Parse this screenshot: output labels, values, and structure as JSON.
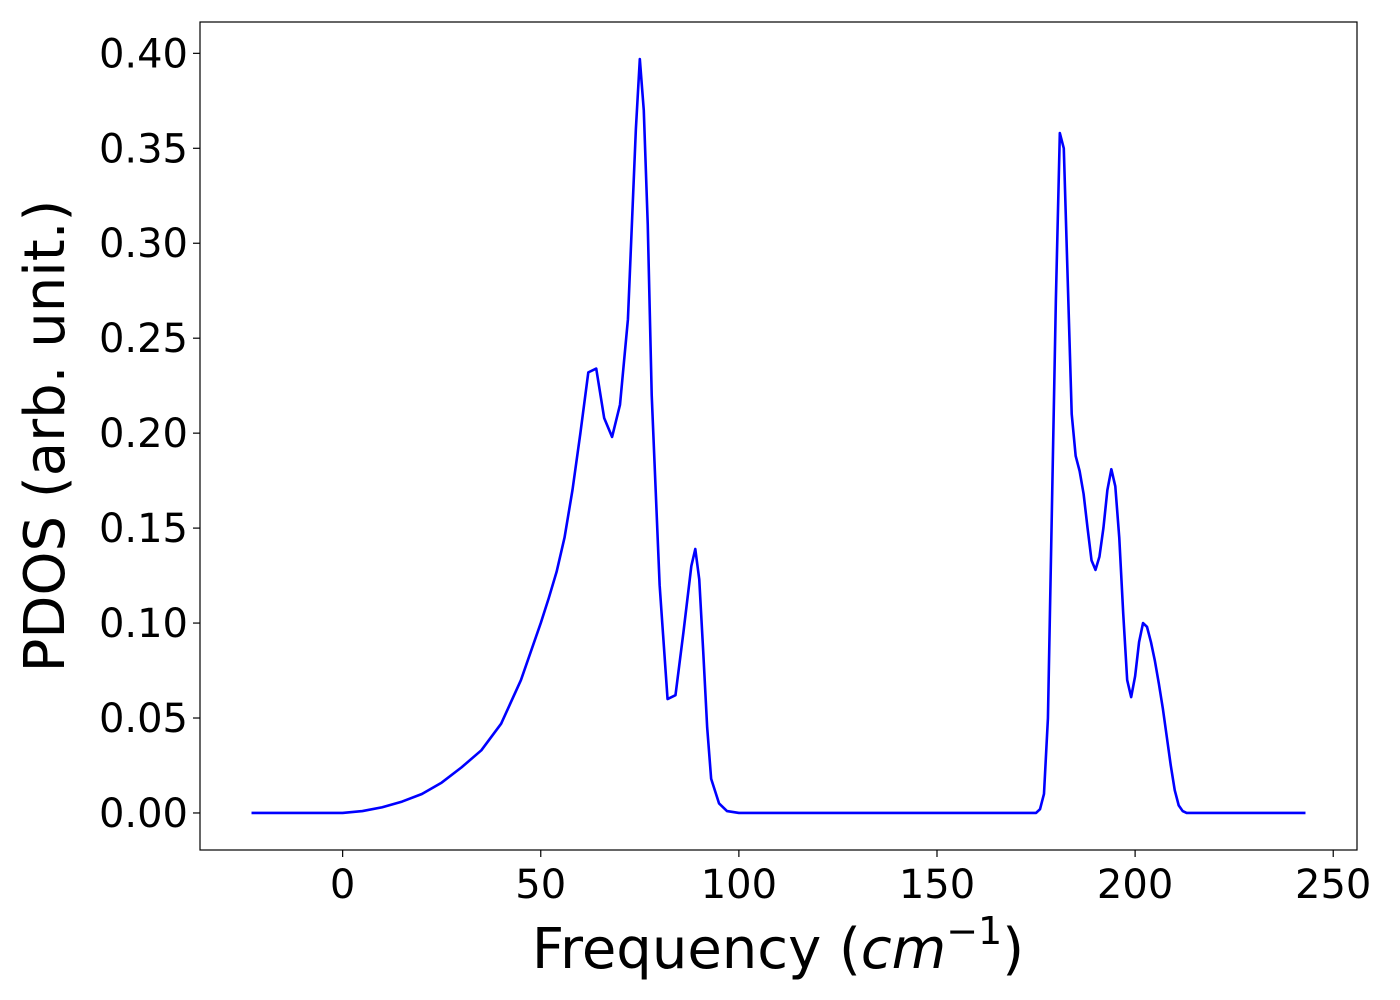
{
  "chart_data": {
    "type": "line",
    "xlabel_text": "Frequency (",
    "xlabel_math": "cm",
    "xlabel_sup": "−1",
    "xlabel_close": ")",
    "ylabel": "PDOS (arb. unit.)",
    "xlim": [
      -36,
      256
    ],
    "ylim": [
      -0.0195,
      0.4165
    ],
    "xticks": [
      0,
      50,
      100,
      150,
      200,
      250
    ],
    "xtick_labels": [
      "0",
      "50",
      "100",
      "150",
      "200",
      "250"
    ],
    "yticks": [
      0.0,
      0.05,
      0.1,
      0.15,
      0.2,
      0.25,
      0.3,
      0.35,
      0.4
    ],
    "ytick_labels": [
      "0.00",
      "0.05",
      "0.10",
      "0.15",
      "0.20",
      "0.25",
      "0.30",
      "0.35",
      "0.40"
    ],
    "grid": false,
    "series": [
      {
        "color": "#0000ff",
        "x": [
          -23,
          0,
          5,
          10,
          15,
          20,
          25,
          30,
          35,
          40,
          45,
          50,
          52,
          54,
          56,
          58,
          60,
          62,
          64,
          66,
          68,
          70,
          72,
          74,
          75,
          76,
          77,
          78,
          80,
          82,
          84,
          86,
          88,
          89,
          90,
          91,
          92,
          93,
          95,
          97,
          100,
          120,
          150,
          175,
          176,
          177,
          178,
          179,
          180,
          181,
          182,
          183,
          184,
          185,
          186,
          187,
          188,
          189,
          190,
          191,
          192,
          193,
          194,
          195,
          196,
          197,
          198,
          199,
          200,
          201,
          202,
          203,
          204,
          205,
          206,
          207,
          208,
          209,
          210,
          211,
          212,
          213,
          214,
          215,
          216,
          218,
          220,
          222,
          224,
          226,
          228,
          235,
          243
        ],
        "y": [
          0.0,
          0.0,
          0.001,
          0.003,
          0.006,
          0.01,
          0.016,
          0.024,
          0.033,
          0.047,
          0.07,
          0.1,
          0.113,
          0.127,
          0.145,
          0.17,
          0.2,
          0.232,
          0.234,
          0.208,
          0.198,
          0.215,
          0.26,
          0.36,
          0.397,
          0.37,
          0.31,
          0.22,
          0.12,
          0.06,
          0.062,
          0.095,
          0.13,
          0.139,
          0.123,
          0.085,
          0.045,
          0.018,
          0.005,
          0.001,
          0.0,
          0.0,
          0.0,
          0.0,
          0.002,
          0.01,
          0.05,
          0.16,
          0.27,
          0.358,
          0.35,
          0.28,
          0.21,
          0.188,
          0.18,
          0.168,
          0.15,
          0.133,
          0.128,
          0.135,
          0.15,
          0.17,
          0.181,
          0.172,
          0.145,
          0.105,
          0.07,
          0.061,
          0.072,
          0.09,
          0.1,
          0.098,
          0.09,
          0.08,
          0.068,
          0.055,
          0.04,
          0.025,
          0.012,
          0.004,
          0.001,
          0.0,
          0.0,
          0.0,
          0.0,
          0.0,
          0.0,
          0.0,
          0.0,
          0.0,
          0.0,
          0.0,
          0.0
        ]
      }
    ]
  }
}
